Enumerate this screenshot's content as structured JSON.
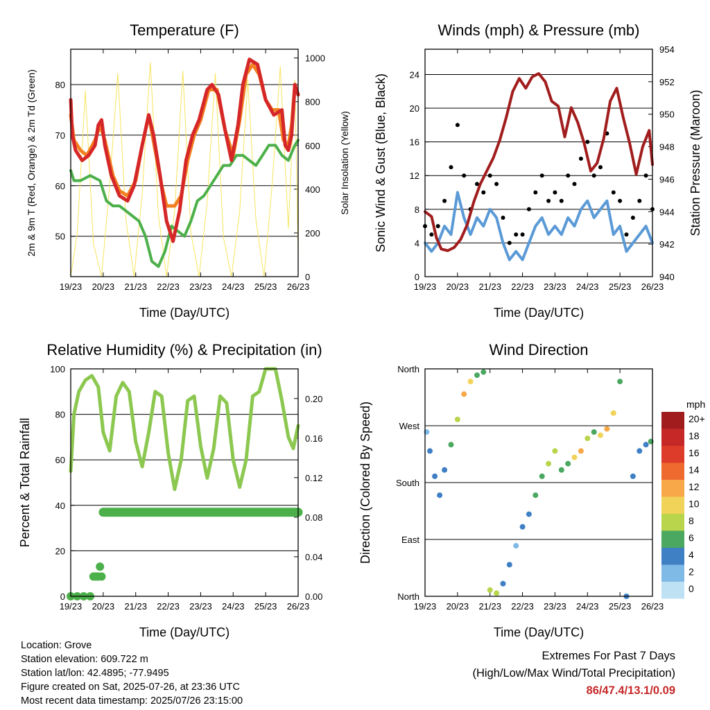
{
  "colors": {
    "temp_red": "#d62728",
    "temp_orange": "#f28020",
    "dewpoint_green": "#4cb04a",
    "solar_yellow": "#f7e45c",
    "wind_blue": "#5a9ad6",
    "gust_black": "#000000",
    "pressure_maroon": "#a11d1d",
    "humidity_green": "#8cc850",
    "rain_green": "#4cb04a",
    "extremes_red": "#c62828"
  },
  "chart_data": [
    {
      "type": "line",
      "title": "Temperature (F)",
      "xlabel": "Time (Day/UTC)",
      "ylabel": "2m & 9m T (Red, Orange) & 2m Td (Green)",
      "y2label": "Solar Insolation (Yellow)",
      "x_ticks": [
        "19/23",
        "20/23",
        "21/23",
        "22/23",
        "23/23",
        "24/23",
        "25/23",
        "26/23"
      ],
      "xlim": [
        0,
        7
      ],
      "ylim": [
        42,
        87
      ],
      "y_ticks": [
        50,
        60,
        70,
        80
      ],
      "y2lim": [
        0,
        1040
      ],
      "y2_ticks": [
        0,
        200,
        400,
        600,
        800,
        1000
      ],
      "grid": "horizontal",
      "series": [
        {
          "name": "2m T",
          "color": "#d62728",
          "x": [
            0,
            0.05,
            0.15,
            0.35,
            0.55,
            0.75,
            0.85,
            0.95,
            1.05,
            1.25,
            1.5,
            1.75,
            1.95,
            2.2,
            2.4,
            2.55,
            2.75,
            2.95,
            3.15,
            3.35,
            3.55,
            3.75,
            3.95,
            4.2,
            4.35,
            4.55,
            4.75,
            4.95,
            5.15,
            5.3,
            5.5,
            5.75,
            6,
            6.25,
            6.5,
            6.6,
            6.7,
            6.8,
            6.9,
            7
          ],
          "y": [
            77,
            70,
            67,
            65,
            66,
            68,
            72,
            73,
            68,
            62,
            58,
            57,
            60,
            68,
            74,
            70,
            62,
            53,
            49,
            55,
            65,
            70,
            73,
            79,
            80,
            78,
            71,
            65,
            72,
            80,
            85,
            84,
            77,
            74,
            75,
            68,
            67,
            70,
            80,
            78
          ]
        },
        {
          "name": "9m T",
          "color": "#f28020",
          "x": [
            0,
            0.1,
            0.3,
            0.5,
            0.75,
            0.9,
            1.05,
            1.3,
            1.5,
            1.75,
            2,
            2.2,
            2.4,
            2.6,
            2.8,
            2.95,
            3.2,
            3.4,
            3.6,
            3.8,
            4,
            4.25,
            4.5,
            4.75,
            5,
            5.2,
            5.4,
            5.6,
            5.8,
            6,
            6.2,
            6.4,
            6.55,
            6.7,
            6.8,
            6.9,
            7
          ],
          "y": [
            74,
            69,
            67,
            66,
            69,
            72,
            69,
            62,
            59,
            58,
            61,
            68,
            74,
            67,
            60,
            56,
            56,
            58,
            65,
            70,
            73,
            79,
            79,
            71,
            66,
            73,
            82,
            84,
            82,
            77,
            75,
            75,
            69,
            68,
            72,
            80,
            78
          ]
        },
        {
          "name": "2m Td",
          "color": "#4cb04a",
          "x": [
            0,
            0.1,
            0.3,
            0.6,
            0.9,
            1.1,
            1.3,
            1.5,
            1.7,
            1.9,
            2.1,
            2.3,
            2.5,
            2.7,
            2.9,
            3.1,
            3.3,
            3.5,
            3.7,
            3.9,
            4.1,
            4.3,
            4.5,
            4.7,
            4.9,
            5.1,
            5.3,
            5.5,
            5.7,
            5.9,
            6.1,
            6.3,
            6.5,
            6.7,
            6.9,
            7
          ],
          "y": [
            63,
            61,
            61,
            62,
            61,
            57,
            56,
            56,
            55,
            54,
            53,
            50,
            45,
            44,
            47,
            52,
            51,
            50,
            53,
            57,
            58,
            60,
            62,
            64,
            64,
            66,
            66,
            65,
            64,
            66,
            68,
            68,
            66,
            65,
            68,
            69
          ]
        },
        {
          "name": "Solar Insolation",
          "color": "#f7e45c",
          "axis": "y2",
          "x": [
            0,
            0.2,
            0.45,
            0.7,
            0.95,
            1.2,
            1.45,
            1.7,
            1.95,
            2.2,
            2.45,
            2.7,
            2.95,
            3.2,
            3.45,
            3.7,
            3.95,
            4.2,
            4.45,
            4.7,
            4.95,
            5.2,
            5.45,
            5.7,
            5.95,
            6.2,
            6.45,
            6.7,
            6.9,
            7
          ],
          "y": [
            0,
            200,
            850,
            150,
            0,
            420,
            930,
            260,
            0,
            380,
            980,
            280,
            0,
            300,
            940,
            200,
            0,
            340,
            930,
            180,
            0,
            300,
            900,
            260,
            0,
            420,
            960,
            220,
            900,
            100
          ]
        }
      ]
    },
    {
      "type": "scatter",
      "title": "Winds (mph) & Pressure (mb)",
      "xlabel": "Time (Day/UTC)",
      "ylabel": "Sonic Wind & Gust (Blue, Black)",
      "y2label": "Station Pressure (Maroon)",
      "x_ticks": [
        "19/23",
        "20/23",
        "21/23",
        "22/23",
        "23/23",
        "24/23",
        "25/23",
        "26/23"
      ],
      "xlim": [
        0,
        7
      ],
      "ylim": [
        0,
        27
      ],
      "y_ticks": [
        0,
        4,
        8,
        12,
        16,
        20,
        24
      ],
      "y2lim": [
        940,
        954
      ],
      "y2_ticks": [
        940,
        942,
        944,
        946,
        948,
        950,
        952,
        954
      ],
      "grid": "horizontal",
      "series": [
        {
          "name": "Sonic Wind",
          "color": "#5a9ad6",
          "x": [
            0,
            0.2,
            0.4,
            0.6,
            0.8,
            1.0,
            1.2,
            1.4,
            1.6,
            1.8,
            2.0,
            2.2,
            2.4,
            2.6,
            2.8,
            3.0,
            3.2,
            3.4,
            3.6,
            3.8,
            4.0,
            4.2,
            4.4,
            4.6,
            4.8,
            5.0,
            5.2,
            5.4,
            5.6,
            5.8,
            6.0,
            6.2,
            6.4,
            6.6,
            6.8,
            7
          ],
          "y": [
            4,
            3,
            4,
            6,
            5,
            10,
            7,
            5,
            7,
            6,
            8,
            7,
            4,
            2,
            3,
            2,
            4,
            6,
            7,
            5,
            6,
            5,
            7,
            6,
            8,
            9,
            7,
            8,
            9,
            5,
            6,
            3,
            4,
            5,
            6,
            4
          ]
        },
        {
          "name": "Gust",
          "color": "#000000",
          "x": [
            0,
            0.2,
            0.4,
            0.6,
            0.8,
            1.0,
            1.2,
            1.4,
            1.6,
            1.8,
            2.0,
            2.2,
            2.4,
            2.6,
            2.8,
            3.0,
            3.2,
            3.4,
            3.6,
            3.8,
            4.0,
            4.2,
            4.4,
            4.6,
            4.8,
            5.0,
            5.2,
            5.4,
            5.6,
            5.8,
            6.0,
            6.2,
            6.4,
            6.6,
            6.8,
            7
          ],
          "y": [
            6,
            5,
            6,
            9,
            13,
            18,
            12,
            8,
            11,
            10,
            12,
            11,
            7,
            4,
            5,
            5,
            8,
            10,
            12,
            9,
            10,
            9,
            12,
            11,
            14,
            16,
            12,
            13,
            17,
            10,
            9,
            5,
            7,
            9,
            12,
            8
          ]
        },
        {
          "name": "Station Pressure",
          "color": "#a11d1d",
          "axis": "y2",
          "x": [
            0,
            0.2,
            0.35,
            0.5,
            0.7,
            0.9,
            1.1,
            1.3,
            1.5,
            1.7,
            1.9,
            2.1,
            2.3,
            2.5,
            2.7,
            2.9,
            3.1,
            3.3,
            3.5,
            3.7,
            3.9,
            4.1,
            4.3,
            4.5,
            4.7,
            4.9,
            5.1,
            5.3,
            5.5,
            5.7,
            5.9,
            6.1,
            6.3,
            6.5,
            6.7,
            6.9,
            7
          ],
          "y": [
            944,
            943.7,
            942.4,
            941.7,
            941.6,
            941.8,
            942.3,
            943.2,
            944.6,
            945.7,
            946.5,
            947.3,
            948.4,
            949.8,
            951.4,
            952.2,
            951.6,
            952.3,
            952.5,
            952.0,
            950.8,
            950.5,
            948.6,
            950.4,
            949.5,
            948.2,
            946.5,
            947.0,
            948.5,
            950.8,
            951.6,
            949.8,
            948.2,
            946.3,
            948.0,
            949.0,
            946.9
          ]
        }
      ]
    },
    {
      "type": "line",
      "title": "Relative Humidity (%) & Precipitation (in)",
      "xlabel": "Time (Day/UTC)",
      "ylabel": "Percent & Total Rainfall",
      "x_ticks": [
        "19/23",
        "20/23",
        "21/23",
        "22/23",
        "23/23",
        "24/23",
        "25/23",
        "26/23"
      ],
      "xlim": [
        0,
        7
      ],
      "ylim": [
        0,
        100
      ],
      "y_ticks": [
        0,
        20,
        40,
        60,
        80,
        100
      ],
      "y2lim": [
        0,
        0.23
      ],
      "y2_ticks": [
        0.0,
        0.04,
        0.08,
        0.12,
        0.16,
        0.2
      ],
      "grid": "horizontal",
      "series": [
        {
          "name": "Relative Humidity",
          "color": "#8cc850",
          "x": [
            0,
            0.1,
            0.25,
            0.45,
            0.65,
            0.85,
            1.0,
            1.2,
            1.4,
            1.6,
            1.8,
            2.0,
            2.2,
            2.4,
            2.6,
            2.8,
            3.0,
            3.2,
            3.4,
            3.6,
            3.8,
            4.0,
            4.2,
            4.4,
            4.6,
            4.8,
            5.0,
            5.2,
            5.4,
            5.6,
            5.8,
            6.0,
            6.1,
            6.3,
            6.5,
            6.7,
            6.85,
            7
          ],
          "y": [
            55,
            80,
            90,
            95,
            97,
            92,
            72,
            64,
            88,
            94,
            90,
            68,
            57,
            72,
            90,
            88,
            63,
            47,
            60,
            86,
            88,
            66,
            52,
            65,
            88,
            85,
            60,
            48,
            60,
            88,
            90,
            100,
            100,
            100,
            86,
            70,
            65,
            75
          ]
        },
        {
          "name": "Total Rainfall",
          "color": "#4cb04a",
          "axis": "y2",
          "x": [
            0,
            0.2,
            0.4,
            0.6,
            0.7,
            0.75,
            0.8,
            0.85,
            0.9,
            0.95,
            1.0,
            1.5,
            2.0,
            3.0,
            4.0,
            5.0,
            6.0,
            7.0
          ],
          "y": [
            0.0,
            0.0,
            0.0,
            0.0,
            0.02,
            0.02,
            0.02,
            0.02,
            0.03,
            0.02,
            0.085,
            0.085,
            0.085,
            0.085,
            0.085,
            0.085,
            0.085,
            0.085
          ]
        }
      ]
    },
    {
      "type": "scatter",
      "title": "Wind Direction",
      "xlabel": "Time (Day/UTC)",
      "ylabel": "Direction (Colored By Speed)",
      "x_ticks": [
        "19/23",
        "20/23",
        "21/23",
        "22/23",
        "23/23",
        "24/23",
        "25/23",
        "26/23"
      ],
      "xlim": [
        0,
        7
      ],
      "ylim": [
        0,
        360
      ],
      "y_ticks": [
        "North",
        "East",
        "South",
        "West",
        "North"
      ],
      "grid": "horizontal",
      "colorbar": {
        "title": "mph",
        "labels": [
          "20+",
          "18",
          "16",
          "14",
          "12",
          "10",
          "8",
          "6",
          "4",
          "2",
          "0"
        ],
        "colors": [
          "#a11d1d",
          "#c62828",
          "#dd3c2a",
          "#ee6a2e",
          "#f8a848",
          "#f2d35a",
          "#b8d54c",
          "#4aa860",
          "#3f7fc4",
          "#7fb9e6",
          "#bfe1f4"
        ]
      },
      "series": [
        {
          "name": "Direction",
          "x": [
            0.05,
            0.15,
            0.3,
            0.45,
            0.6,
            0.8,
            1.0,
            1.2,
            1.4,
            1.6,
            1.8,
            2.0,
            2.2,
            2.4,
            2.6,
            2.8,
            3.0,
            3.2,
            3.4,
            3.6,
            3.8,
            4.0,
            4.2,
            4.4,
            4.6,
            4.8,
            5.0,
            5.2,
            5.4,
            5.6,
            5.8,
            6.0,
            6.2,
            6.4,
            6.6,
            6.8,
            6.95
          ],
          "y": [
            260,
            230,
            190,
            160,
            200,
            240,
            280,
            320,
            340,
            350,
            355,
            10,
            5,
            20,
            50,
            80,
            110,
            130,
            160,
            190,
            210,
            230,
            200,
            210,
            220,
            230,
            250,
            260,
            255,
            265,
            290,
            340,
            0,
            190,
            230,
            240,
            245
          ],
          "speed": [
            2,
            3,
            4,
            3,
            4,
            5,
            8,
            11,
            9,
            6,
            5,
            7,
            8,
            4,
            3,
            2,
            3,
            4,
            5,
            6,
            8,
            7,
            5,
            6,
            9,
            11,
            8,
            6,
            9,
            12,
            10,
            5,
            3,
            4,
            3,
            4,
            5
          ]
        }
      ]
    }
  ],
  "info": {
    "location": "Location: Grove",
    "elevation": "Station elevation: 609.722 m",
    "latlon": "Station lat/lon: 42.4895; -77.9495",
    "created": "Figure created on Sat, 2025-07-26, at 23:36 UTC",
    "recent": "Most recent data timestamp: 2025/07/26 23:15:00"
  },
  "extremes": {
    "title": "Extremes For Past 7 Days",
    "subtitle": "(High/Low/Max Wind/Total Precipitation)",
    "values": "86/47.4/13.1/0.09"
  }
}
